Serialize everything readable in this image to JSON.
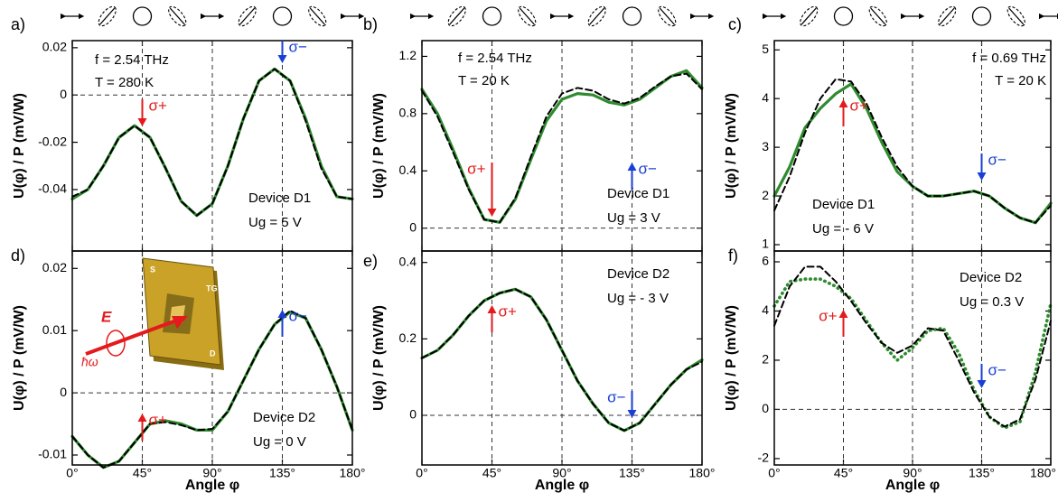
{
  "chart_data": [
    {
      "type": "line",
      "panel": "a)",
      "ylabel": "U(φ) / P   (mV/W)",
      "params": [
        "f = 2.54 THz",
        "T =  280 K"
      ],
      "device": "Device D1",
      "gate": "Ug = 5 V",
      "x": [
        0,
        10,
        20,
        30,
        40,
        50,
        60,
        70,
        80,
        90,
        100,
        110,
        120,
        130,
        140,
        150,
        160,
        170,
        180
      ],
      "series": [
        {
          "color": "#2e8b2e",
          "style": "solid",
          "values": [
            -0.044,
            -0.04,
            -0.03,
            -0.018,
            -0.013,
            -0.018,
            -0.031,
            -0.045,
            -0.051,
            -0.046,
            -0.03,
            -0.01,
            0.006,
            0.011,
            0.006,
            -0.01,
            -0.03,
            -0.043,
            -0.044
          ]
        },
        {
          "color": "#000000",
          "style": "dashed",
          "values": [
            -0.043,
            -0.04,
            -0.03,
            -0.018,
            -0.013,
            -0.018,
            -0.031,
            -0.045,
            -0.051,
            -0.046,
            -0.03,
            -0.01,
            0.006,
            0.011,
            0.006,
            -0.011,
            -0.031,
            -0.043,
            -0.044
          ]
        }
      ],
      "arrows": [
        {
          "label": "σ+",
          "x": 45,
          "direction": "down",
          "color": "#e41a1c"
        },
        {
          "label": "σ−",
          "x": 135,
          "direction": "down",
          "color": "#1a3fd6"
        }
      ],
      "xlim": [
        0,
        180
      ],
      "xticks": [
        0,
        45,
        90,
        135,
        180
      ],
      "ylim": [
        -0.066,
        0.023
      ],
      "yticks": [
        -0.04,
        -0.02,
        0,
        0.02
      ],
      "zero_line": true,
      "grid_x": true
    },
    {
      "type": "line",
      "panel": "b)",
      "ylabel": "U(φ) / P   (mV/W)",
      "params": [
        "f = 2.54 THz",
        "T =  20 K"
      ],
      "device": "Device D1",
      "gate": "Ug = 3 V",
      "x": [
        0,
        10,
        20,
        30,
        40,
        50,
        60,
        70,
        80,
        90,
        100,
        110,
        120,
        130,
        140,
        150,
        160,
        170,
        180
      ],
      "series": [
        {
          "color": "#2e8b2e",
          "style": "solid",
          "values": [
            0.97,
            0.8,
            0.55,
            0.28,
            0.06,
            0.04,
            0.2,
            0.48,
            0.75,
            0.9,
            0.94,
            0.93,
            0.88,
            0.86,
            0.9,
            0.98,
            1.06,
            1.1,
            0.98
          ]
        },
        {
          "color": "#000000",
          "style": "dashed",
          "values": [
            0.96,
            0.78,
            0.53,
            0.27,
            0.06,
            0.04,
            0.21,
            0.5,
            0.78,
            0.94,
            0.98,
            0.96,
            0.9,
            0.87,
            0.91,
            0.99,
            1.06,
            1.08,
            0.97
          ]
        }
      ],
      "arrows": [
        {
          "label": "σ+",
          "x": 45,
          "direction": "down",
          "color": "#e41a1c"
        },
        {
          "label": "σ−",
          "x": 135,
          "direction": "up",
          "color": "#1a3fd6"
        }
      ],
      "xlim": [
        0,
        180
      ],
      "xticks": [
        0,
        45,
        90,
        135,
        180
      ],
      "ylim": [
        -0.16,
        1.31
      ],
      "yticks": [
        0,
        0.4,
        0.8,
        1.2
      ],
      "zero_line": true,
      "grid_x": true
    },
    {
      "type": "line",
      "panel": "c)",
      "ylabel": "U(φ) / P   (mV/W)",
      "params": [
        "f = 0.69 THz",
        "T =  20 K"
      ],
      "device": "Device D1",
      "gate": "Ug = - 6 V",
      "x": [
        0,
        10,
        20,
        30,
        40,
        50,
        60,
        70,
        80,
        90,
        100,
        110,
        120,
        130,
        140,
        150,
        160,
        170,
        180
      ],
      "series": [
        {
          "color": "#2e8b2e",
          "style": "solid",
          "values": [
            2.0,
            2.6,
            3.4,
            3.8,
            4.1,
            4.3,
            3.8,
            3.1,
            2.5,
            2.2,
            2.0,
            2.0,
            2.05,
            2.1,
            2.0,
            1.75,
            1.55,
            1.45,
            1.85
          ]
        },
        {
          "color": "#000000",
          "style": "dashed",
          "values": [
            1.7,
            2.4,
            3.3,
            4.0,
            4.4,
            4.35,
            3.9,
            3.2,
            2.6,
            2.2,
            2.0,
            2.0,
            2.05,
            2.1,
            2.0,
            1.75,
            1.55,
            1.45,
            1.8
          ]
        }
      ],
      "arrows": [
        {
          "label": "σ+",
          "x": 45,
          "direction": "up",
          "color": "#e41a1c"
        },
        {
          "label": "σ−",
          "x": 135,
          "direction": "down",
          "color": "#1a3fd6"
        }
      ],
      "xlim": [
        0,
        180
      ],
      "xticks": [
        0,
        45,
        90,
        135,
        180
      ],
      "ylim": [
        0.87,
        5.19
      ],
      "yticks": [
        1,
        2,
        3,
        4,
        5
      ],
      "zero_line": false,
      "grid_x": true
    },
    {
      "type": "line",
      "panel": "d)",
      "ylabel": "U(φ) / P   (mV/W)",
      "xlabel": "Angle φ",
      "device": "Device D2",
      "gate": "Ug = 0 V",
      "inset": {
        "labels": [
          "S",
          "TG",
          "D"
        ],
        "field": "E",
        "photon": "ħω"
      },
      "x": [
        0,
        10,
        20,
        30,
        40,
        50,
        60,
        70,
        80,
        90,
        100,
        110,
        120,
        130,
        140,
        150,
        160,
        170,
        180
      ],
      "series": [
        {
          "color": "#2e8b2e",
          "style": "solid",
          "values": [
            -0.007,
            -0.01,
            -0.012,
            -0.011,
            -0.008,
            -0.005,
            -0.0045,
            -0.005,
            -0.006,
            -0.006,
            -0.003,
            0.002,
            0.007,
            0.011,
            0.013,
            0.012,
            0.007,
            0.001,
            -0.006
          ]
        },
        {
          "color": "#000000",
          "style": "dashed",
          "values": [
            -0.007,
            -0.01,
            -0.012,
            -0.011,
            -0.008,
            -0.005,
            -0.0047,
            -0.0052,
            -0.006,
            -0.0058,
            -0.003,
            0.002,
            0.007,
            0.011,
            0.0132,
            0.012,
            0.007,
            0.001,
            -0.006
          ]
        }
      ],
      "arrows": [
        {
          "label": "σ+",
          "x": 45,
          "direction": "up",
          "color": "#e41a1c"
        },
        {
          "label": "σ−",
          "x": 135,
          "direction": "up",
          "color": "#1a3fd6"
        }
      ],
      "xlim": [
        0,
        180
      ],
      "xticks": [
        {
          "value": 0,
          "label": "0°"
        },
        {
          "value": 45,
          "label": "45°"
        },
        {
          "value": 90,
          "label": "90°"
        },
        {
          "value": 135,
          "label": "135°"
        },
        {
          "value": 180,
          "label": "180°"
        }
      ],
      "ylim": [
        -0.0116,
        0.0228
      ],
      "yticks": [
        -0.01,
        0,
        0.01,
        0.02
      ],
      "zero_line": true,
      "grid_x": true
    },
    {
      "type": "line",
      "panel": "e)",
      "ylabel": "U(φ) / P   (mV/W)",
      "xlabel": "Angle φ",
      "device": "Device D2",
      "gate": "Ug = - 3 V",
      "x": [
        0,
        10,
        20,
        30,
        40,
        50,
        60,
        70,
        80,
        90,
        100,
        110,
        120,
        130,
        140,
        150,
        160,
        170,
        180
      ],
      "series": [
        {
          "color": "#2e8b2e",
          "style": "solid",
          "values": [
            0.15,
            0.17,
            0.21,
            0.26,
            0.3,
            0.32,
            0.33,
            0.31,
            0.25,
            0.17,
            0.09,
            0.03,
            -0.02,
            -0.04,
            -0.02,
            0.03,
            0.08,
            0.12,
            0.145
          ]
        },
        {
          "color": "#000000",
          "style": "dashed",
          "values": [
            0.15,
            0.17,
            0.21,
            0.26,
            0.3,
            0.32,
            0.33,
            0.31,
            0.25,
            0.17,
            0.09,
            0.03,
            -0.02,
            -0.04,
            -0.02,
            0.03,
            0.08,
            0.12,
            0.14
          ]
        }
      ],
      "arrows": [
        {
          "label": "σ+",
          "x": 45,
          "direction": "up",
          "color": "#e41a1c"
        },
        {
          "label": "σ−",
          "x": 135,
          "direction": "down",
          "color": "#1a3fd6"
        }
      ],
      "xlim": [
        0,
        180
      ],
      "xticks": [
        {
          "value": 0,
          "label": "0°"
        },
        {
          "value": 45,
          "label": "45°"
        },
        {
          "value": 90,
          "label": "90°"
        },
        {
          "value": 135,
          "label": "135°"
        },
        {
          "value": 180,
          "label": "180°"
        }
      ],
      "ylim": [
        -0.13,
        0.43
      ],
      "yticks": [
        0,
        0.2,
        0.4
      ],
      "zero_line": true,
      "grid_x": true
    },
    {
      "type": "line",
      "panel": "f)",
      "ylabel": "U(φ) / P   (mV/W)",
      "xlabel": "Angle φ",
      "device": "Device D2",
      "gate": "Ug = 0.3 V",
      "x": [
        0,
        10,
        20,
        30,
        40,
        50,
        60,
        70,
        80,
        90,
        100,
        110,
        120,
        130,
        140,
        150,
        160,
        170,
        180
      ],
      "series": [
        {
          "color": "#2e8b2e",
          "style": "dotted",
          "values": [
            4.2,
            5.2,
            5.3,
            5.3,
            5.0,
            4.5,
            3.6,
            2.7,
            2.0,
            2.5,
            3.2,
            3.3,
            2.3,
            0.8,
            -0.3,
            -0.75,
            -0.5,
            1.5,
            4.3
          ]
        },
        {
          "color": "#000000",
          "style": "dashed",
          "values": [
            3.4,
            5.0,
            5.8,
            5.8,
            5.2,
            4.4,
            3.5,
            2.7,
            2.3,
            2.6,
            3.3,
            3.2,
            2.0,
            0.7,
            -0.3,
            -0.7,
            -0.4,
            1.2,
            3.6
          ]
        }
      ],
      "arrows": [
        {
          "label": "σ+",
          "x": 45,
          "direction": "up",
          "color": "#e41a1c"
        },
        {
          "label": "σ−",
          "x": 135,
          "direction": "down",
          "color": "#1a3fd6"
        }
      ],
      "xlim": [
        0,
        180
      ],
      "xticks": [
        {
          "value": 0,
          "label": "0°"
        },
        {
          "value": 45,
          "label": "45°"
        },
        {
          "value": 90,
          "label": "90°"
        },
        {
          "value": 135,
          "label": "135°"
        },
        {
          "value": 180,
          "label": "180°"
        }
      ],
      "ylim": [
        -2.26,
        6.44
      ],
      "yticks": [
        -2,
        0,
        2,
        4,
        6
      ],
      "zero_line": true,
      "grid_x": true
    }
  ]
}
